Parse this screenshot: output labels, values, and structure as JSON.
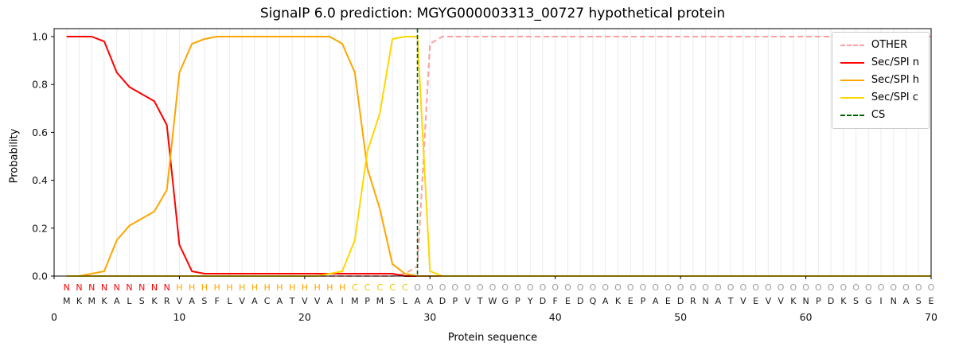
{
  "title": "SignalP 6.0 prediction: MGYG000003313_00727 hypothetical protein",
  "axes": {
    "x_label": "Protein sequence",
    "y_label": "Probability",
    "x_ticks": [
      0,
      10,
      20,
      30,
      40,
      50,
      60,
      70
    ],
    "y_ticks": [
      "0.0",
      "0.2",
      "0.4",
      "0.6",
      "0.8",
      "1.0"
    ]
  },
  "legend": {
    "position": "upper right",
    "entries": [
      {
        "label": "OTHER",
        "color": "#ff9e9e",
        "dashed": true
      },
      {
        "label": "Sec/SPI n",
        "color": "#ff0000",
        "dashed": false
      },
      {
        "label": "Sec/SPI h",
        "color": "#ffa500",
        "dashed": false
      },
      {
        "label": "Sec/SPI c",
        "color": "#ffd700",
        "dashed": false
      },
      {
        "label": "CS",
        "color": "#006400",
        "dashed": true
      }
    ]
  },
  "chart_data": {
    "type": "line",
    "x_range": [
      0,
      70
    ],
    "y_range": [
      0.0,
      1.0
    ],
    "grid": {
      "vertical_per_residue": true,
      "color": "#ebebeb"
    },
    "cs": {
      "position": 29,
      "color": "#006400"
    },
    "sequence": "MKMKALSKRVASFLVACATVVAIMPMSLAADPVTWGPYDFEDQAKEPAEDRNATVEVVKNPDKSGINASE",
    "regions": "NNNNNNNNNHHHHHHHHHHHHHHCCCCCOOOOOOOOOOOOOOOOOOOOOOOOOOOOOOOOOOOOOOOOOO",
    "region_colors": {
      "N": "#ff0000",
      "H": "#ffa500",
      "C": "#f0c400",
      "O": "#9e9e9e"
    },
    "sequence_color": "#1a1a1a",
    "series": [
      {
        "name": "OTHER",
        "color": "#ff9e9e",
        "style": "dashed",
        "values": [
          0,
          0,
          0,
          0,
          0,
          0,
          0,
          0,
          0,
          0,
          0,
          0,
          0,
          0,
          0,
          0,
          0,
          0,
          0,
          0,
          0,
          0,
          0,
          0,
          0,
          0,
          0,
          0.01,
          0.04,
          0.97,
          1,
          1,
          1,
          1,
          1,
          1,
          1,
          1,
          1,
          1,
          1,
          1,
          1,
          1,
          1,
          1,
          1,
          1,
          1,
          1,
          1,
          1,
          1,
          1,
          1,
          1,
          1,
          1,
          1,
          1,
          1,
          1,
          1,
          1,
          1,
          1,
          1,
          1,
          1,
          1
        ]
      },
      {
        "name": "Sec/SPI n",
        "color": "#ff0000",
        "style": "solid",
        "values": [
          1,
          1,
          1,
          0.98,
          0.85,
          0.79,
          0.76,
          0.73,
          0.63,
          0.13,
          0.02,
          0.01,
          0.01,
          0.01,
          0.01,
          0.01,
          0.01,
          0.01,
          0.01,
          0.01,
          0.01,
          0.01,
          0.01,
          0.01,
          0.01,
          0.01,
          0.01,
          0,
          0,
          0,
          0,
          0,
          0,
          0,
          0,
          0,
          0,
          0,
          0,
          0,
          0,
          0,
          0,
          0,
          0,
          0,
          0,
          0,
          0,
          0,
          0,
          0,
          0,
          0,
          0,
          0,
          0,
          0,
          0,
          0,
          0,
          0,
          0,
          0,
          0,
          0,
          0,
          0,
          0,
          0
        ]
      },
      {
        "name": "Sec/SPI h",
        "color": "#ffa500",
        "style": "solid",
        "values": [
          0,
          0,
          0.01,
          0.02,
          0.15,
          0.21,
          0.24,
          0.27,
          0.36,
          0.85,
          0.97,
          0.99,
          1,
          1,
          1,
          1,
          1,
          1,
          1,
          1,
          1,
          1,
          0.97,
          0.85,
          0.45,
          0.28,
          0.05,
          0.01,
          0,
          0,
          0,
          0,
          0,
          0,
          0,
          0,
          0,
          0,
          0,
          0,
          0,
          0,
          0,
          0,
          0,
          0,
          0,
          0,
          0,
          0,
          0,
          0,
          0,
          0,
          0,
          0,
          0,
          0,
          0,
          0,
          0,
          0,
          0,
          0,
          0,
          0,
          0,
          0,
          0,
          0
        ]
      },
      {
        "name": "Sec/SPI c",
        "color": "#ffd700",
        "style": "solid",
        "values": [
          0,
          0,
          0,
          0,
          0,
          0,
          0,
          0,
          0,
          0,
          0,
          0,
          0,
          0,
          0,
          0,
          0,
          0,
          0,
          0,
          0,
          0.01,
          0.02,
          0.15,
          0.52,
          0.68,
          0.99,
          1,
          1,
          0.02,
          0,
          0,
          0,
          0,
          0,
          0,
          0,
          0,
          0,
          0,
          0,
          0,
          0,
          0,
          0,
          0,
          0,
          0,
          0,
          0,
          0,
          0,
          0,
          0,
          0,
          0,
          0,
          0,
          0,
          0,
          0,
          0,
          0,
          0,
          0,
          0,
          0,
          0,
          0,
          0
        ]
      }
    ]
  }
}
